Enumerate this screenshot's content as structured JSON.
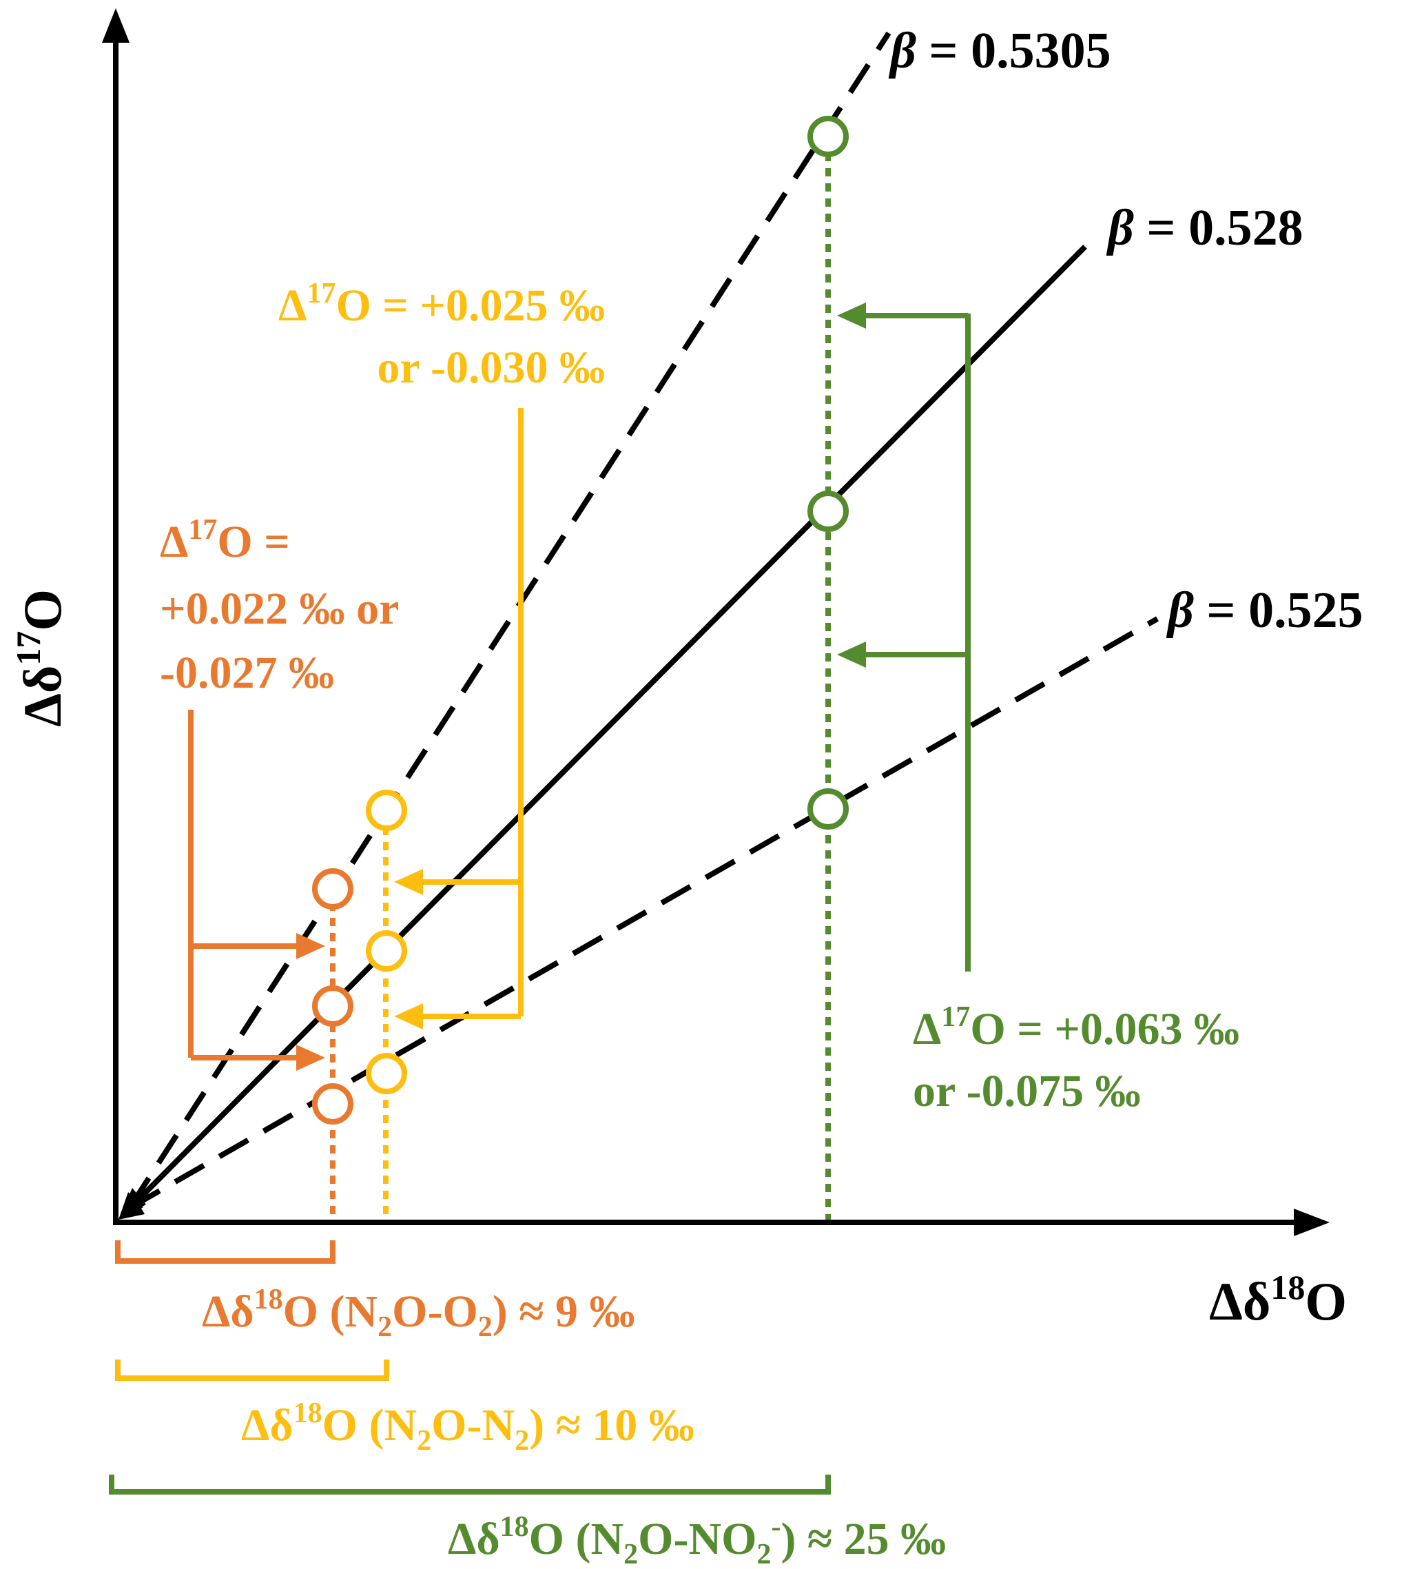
{
  "colors": {
    "axis": "#000000",
    "orange": "#E8792F",
    "yellow": "#FDBE0F",
    "green": "#558B2F"
  },
  "axes": {
    "x_label_prefix": "Δδ",
    "x_label_sup": "18",
    "x_label_suffix": "O",
    "y_label_prefix": "Δδ",
    "y_label_sup": "17",
    "y_label_suffix": "O"
  },
  "lines": [
    {
      "beta_symbol": "β",
      "value": " = 0.5305",
      "style": "dashed"
    },
    {
      "beta_symbol": "β",
      "value": " = 0.528",
      "style": "solid"
    },
    {
      "beta_symbol": "β",
      "value": " = 0.525",
      "style": "dashed"
    }
  ],
  "annotations": {
    "orange": {
      "line1_a": "Δ",
      "line1_sup": "17",
      "line1_b": "O =",
      "line2": "+0.022 ‰ or",
      "line3": "-0.027 ‰"
    },
    "yellow": {
      "line1_a": "Δ",
      "line1_sup": "17",
      "line1_b": "O = +0.025 ‰",
      "line2": "or -0.030 ‰"
    },
    "green": {
      "line1_a": "Δ",
      "line1_sup": "17",
      "line1_b": "O = +0.063 ‰",
      "line2": "or -0.075 ‰"
    }
  },
  "brackets": {
    "orange": {
      "a": "Δδ",
      "sup": "18",
      "b": "O (N",
      "sub1": "2",
      "c": "O-O",
      "sub2": "2",
      "d": ") ≈ 9 ‰"
    },
    "yellow": {
      "a": "Δδ",
      "sup": "18",
      "b": "O (N",
      "sub1": "2",
      "c": "O-N",
      "sub2": "2",
      "d": ") ≈ 10 ‰"
    },
    "green": {
      "a": "Δδ",
      "sup": "18",
      "b": "O (N",
      "sub1": "2",
      "c": "O-NO",
      "sub2": "2",
      "sup2": "-",
      "d": ") ≈ 25 ‰"
    }
  }
}
